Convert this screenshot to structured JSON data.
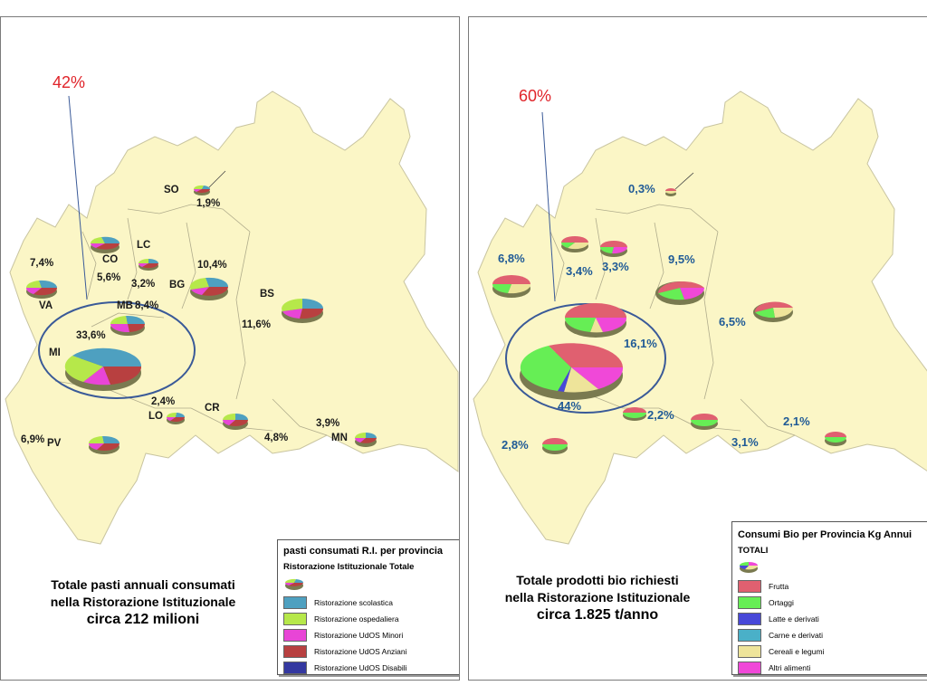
{
  "left_panel": {
    "highlight_label": "42%",
    "legend": {
      "title": "pasti consumati R.I. per provincia",
      "subtitle": "Ristorazione Istituzionale Totale",
      "items": [
        {
          "label": "Ristorazione scolastica",
          "color": "#4ea0c0"
        },
        {
          "label": "Ristorazione ospedaliera",
          "color": "#b6e84a"
        },
        {
          "label": "Ristorazione UdOS Minori",
          "color": "#e845d6"
        },
        {
          "label": "Ristorazione UdOS Anziani",
          "color": "#b84040"
        },
        {
          "label": "Ristorazione UdOS Disabili",
          "color": "#3438a0"
        }
      ]
    },
    "caption": {
      "line1": "Totale pasti annuali consumati",
      "line2": "nella Ristorazione Istituzionale",
      "line3": "circa 212 milioni"
    },
    "provinces": [
      {
        "code": "SO",
        "value": "1,9%"
      },
      {
        "code": "LC",
        "value": "3,2%"
      },
      {
        "code": "CO",
        "value": "5,6%"
      },
      {
        "code": "VA",
        "value": "7,4%"
      },
      {
        "code": "BG",
        "value": "10,4%"
      },
      {
        "code": "BS",
        "value": "11,6%"
      },
      {
        "code": "MB",
        "value": "8,4%"
      },
      {
        "code": "MI",
        "value": "33,6%"
      },
      {
        "code": "LO",
        "value": "2,4%"
      },
      {
        "code": "CR",
        "value": "4,8%"
      },
      {
        "code": "MN",
        "value": "3,9%"
      },
      {
        "code": "PV",
        "value": "6,9%"
      }
    ]
  },
  "right_panel": {
    "highlight_label": "60%",
    "legend": {
      "title": "Consumi Bio per Provincia Kg Annui",
      "subtitle": "TOTALI",
      "items": [
        {
          "label": "Frutta",
          "color": "#e06070"
        },
        {
          "label": "Ortaggi",
          "color": "#66ee55"
        },
        {
          "label": "Latte e derivati",
          "color": "#4848d8"
        },
        {
          "label": "Carne e derivati",
          "color": "#4ab0c8"
        },
        {
          "label": "Cereali e legumi",
          "color": "#eee49a"
        },
        {
          "label": "Altri alimenti",
          "color": "#f048d8"
        }
      ]
    },
    "caption": {
      "line1": "Totale prodotti bio richiesti",
      "line2": "nella Ristorazione Istituzionale",
      "line3": "circa 1.825 t/anno"
    },
    "values": [
      "0,3%",
      "6,8%",
      "3,4%",
      "3,3%",
      "9,5%",
      "6,5%",
      "16,1%",
      "44%",
      "2,2%",
      "2,8%",
      "3,1%",
      "2,1%"
    ]
  }
}
